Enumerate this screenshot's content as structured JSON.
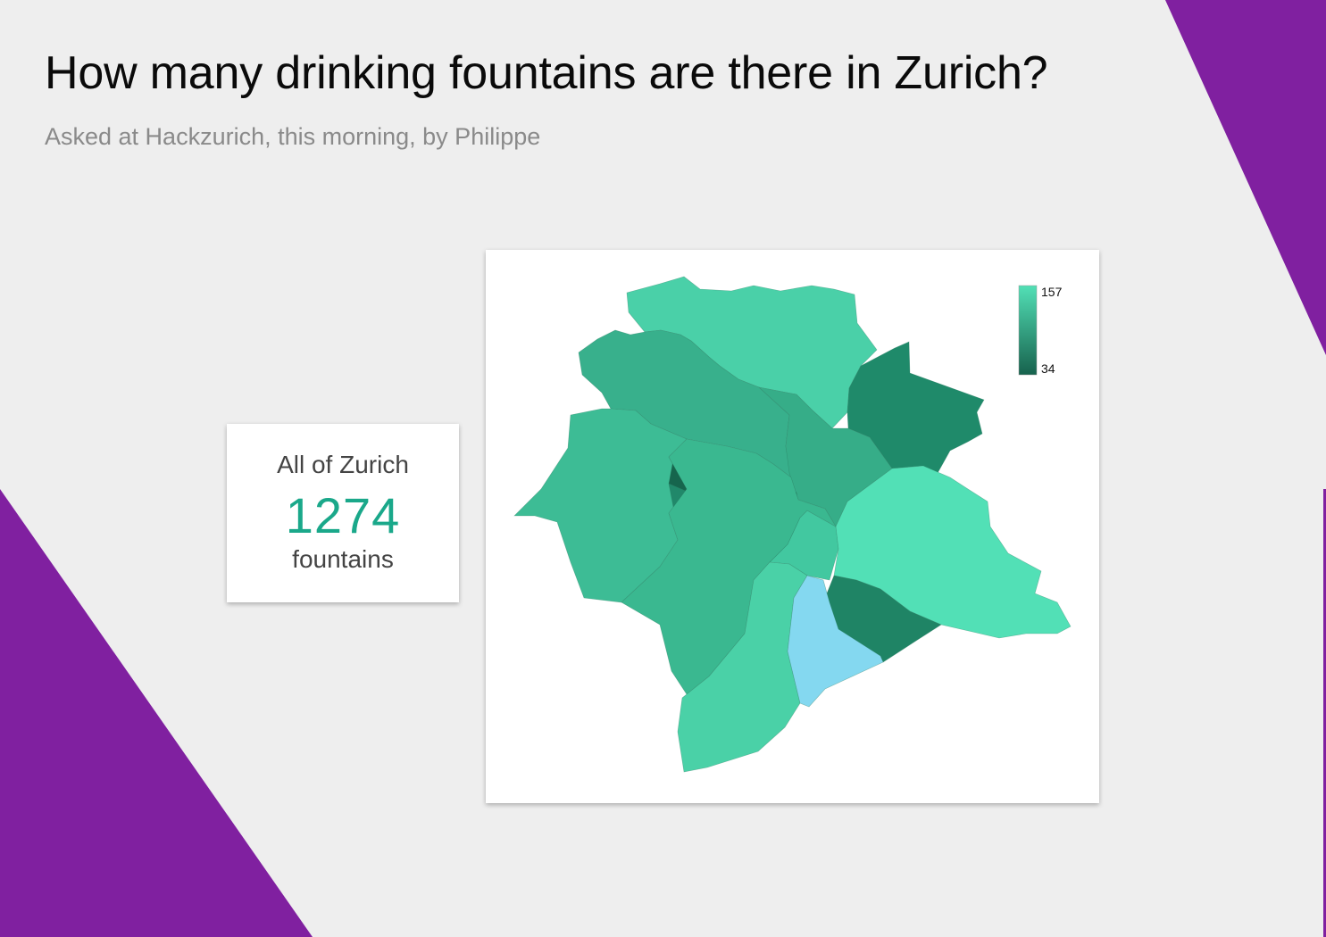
{
  "title": "How many drinking fountains are there in Zurich?",
  "subtitle": "Asked at Hackzurich, this morning, by Philippe",
  "summary": {
    "label": "All of Zurich",
    "value": "1274",
    "unit": "fountains"
  },
  "colors": {
    "background": "#eeeeee",
    "accent_purple": "#8020a0",
    "summary_value": "#1aa88a",
    "scale_high": "#52e0b6",
    "scale_low": "#17624d",
    "lake_district": "#84d8f0"
  },
  "legend": {
    "max_label": "157",
    "min_label": "34",
    "max_value": 157,
    "min_value": 34
  }
}
